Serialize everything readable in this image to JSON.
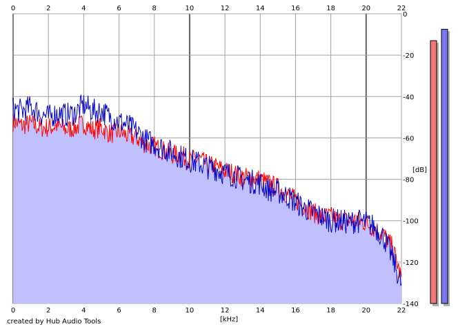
{
  "credit": "created by Hub Audio Tools",
  "colors": {
    "fill": "#c0c0ff",
    "left_channel": "#ff0000",
    "right_channel": "#0000c8",
    "meter_left": "#f07878",
    "meter_right": "#7878f0",
    "grid": "#a0a0a0",
    "major_grid": "#606060"
  },
  "chart_data": {
    "type": "line",
    "xlabel": "[kHz]",
    "ylabel": "[dB]",
    "xlim": [
      0,
      22
    ],
    "ylim": [
      -140,
      0
    ],
    "x_ticks": [
      0,
      2,
      4,
      6,
      8,
      10,
      12,
      14,
      16,
      18,
      20,
      22
    ],
    "y_ticks": [
      0,
      -20,
      -40,
      -60,
      -80,
      -100,
      -120,
      -140
    ],
    "y_tick_labels": [
      "0",
      "-20",
      "-40",
      "-60",
      "-80",
      "-100",
      "-120",
      "-140"
    ],
    "major_x_grid": [
      0,
      10,
      20
    ],
    "grid": true,
    "series": [
      {
        "channel": "left",
        "color": "#ff0000",
        "x": [
          0,
          0.5,
          1,
          1.5,
          2,
          2.5,
          3,
          3.5,
          4,
          4.5,
          5,
          5.5,
          6,
          6.5,
          7,
          7.5,
          8,
          8.5,
          9,
          9.5,
          10,
          10.5,
          11,
          11.5,
          12,
          12.5,
          13,
          13.5,
          14,
          14.5,
          15,
          15.5,
          16,
          16.5,
          17,
          17.5,
          18,
          18.5,
          19,
          19.5,
          20,
          20.5,
          21,
          21.5,
          22
        ],
        "y": [
          -52,
          -54,
          -53,
          -55,
          -55,
          -54,
          -56,
          -55,
          -53,
          -56,
          -55,
          -58,
          -57,
          -59,
          -60,
          -63,
          -64,
          -66,
          -68,
          -68,
          -71,
          -70,
          -73,
          -74,
          -76,
          -77,
          -79,
          -79,
          -80,
          -82,
          -84,
          -87,
          -90,
          -93,
          -96,
          -98,
          -98,
          -100,
          -100,
          -100,
          -101,
          -104,
          -107,
          -113,
          -128
        ]
      },
      {
        "channel": "right",
        "color": "#0000c8",
        "x": [
          0,
          0.5,
          1,
          1.5,
          2,
          2.5,
          3,
          3.5,
          4,
          4.5,
          5,
          5.5,
          6,
          6.5,
          7,
          7.5,
          8,
          8.5,
          9,
          9.5,
          10,
          10.5,
          11,
          11.5,
          12,
          12.5,
          13,
          13.5,
          14,
          14.5,
          15,
          15.5,
          16,
          16.5,
          17,
          17.5,
          18,
          18.5,
          19,
          19.5,
          20,
          20.5,
          21,
          21.5,
          22
        ],
        "y": [
          -46,
          -47,
          -45,
          -48,
          -50,
          -48,
          -49,
          -48,
          -44,
          -47,
          -47,
          -50,
          -52,
          -54,
          -57,
          -61,
          -63,
          -65,
          -67,
          -69,
          -71,
          -72,
          -74,
          -75,
          -77,
          -78,
          -80,
          -81,
          -82,
          -85,
          -86,
          -88,
          -91,
          -94,
          -96,
          -98,
          -100,
          -100,
          -101,
          -100,
          -101,
          -103,
          -108,
          -118,
          -131
        ]
      }
    ],
    "peak_meters": [
      {
        "channel": "left",
        "color": "#f07878",
        "peak_db": -13
      },
      {
        "channel": "right",
        "color": "#7878f0",
        "peak_db": -7.5
      }
    ]
  }
}
